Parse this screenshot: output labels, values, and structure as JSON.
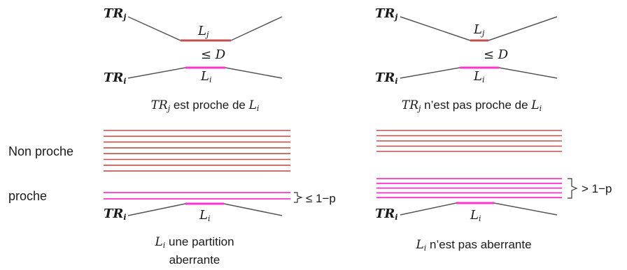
{
  "colors": {
    "line": "#555555",
    "segment_j": "#c0504d",
    "segment_i": "#ff33cc",
    "text": "#1a1a1a"
  },
  "left_top": {
    "tr_j": "TR",
    "tr_j_sub": "j",
    "l_j": "L",
    "l_j_sub": "j",
    "distance": "≤ D",
    "tr_i": "TR",
    "tr_i_sub": "i",
    "l_i": "L",
    "l_i_sub": "i",
    "caption_tr": "TR",
    "caption_tr_sub": "j",
    "caption_mid": " est proche de ",
    "caption_l": "L",
    "caption_l_sub": "i"
  },
  "right_top": {
    "tr_j": "TR",
    "tr_j_sub": "j",
    "l_j": "L",
    "l_j_sub": "j",
    "distance": "≤ D",
    "tr_i": "TR",
    "tr_i_sub": "i",
    "l_i": "L",
    "l_i_sub": "i",
    "caption_tr": "TR",
    "caption_tr_sub": "j",
    "caption_mid": " n’est pas proche de ",
    "caption_l": "L",
    "caption_l_sub": "i"
  },
  "row_labels": {
    "non_proche": "Non proche",
    "proche": "proche"
  },
  "left_bottom": {
    "non_proche_lines": 8,
    "proche_lines": 2,
    "threshold": "≤ 1−p",
    "tr": "TR",
    "tr_sub": "i",
    "l": "L",
    "l_sub": "i",
    "caption_l": "L",
    "caption_l_sub": "i",
    "caption_line1": " une partition",
    "caption_line2": "aberrante"
  },
  "right_bottom": {
    "non_proche_lines": 5,
    "proche_lines": 5,
    "threshold": "> 1−p",
    "tr": "TR",
    "tr_sub": "i",
    "l": "L",
    "l_sub": "i",
    "caption_l": "L",
    "caption_l_sub": "i",
    "caption_line1": " n’est pas aberrante"
  }
}
